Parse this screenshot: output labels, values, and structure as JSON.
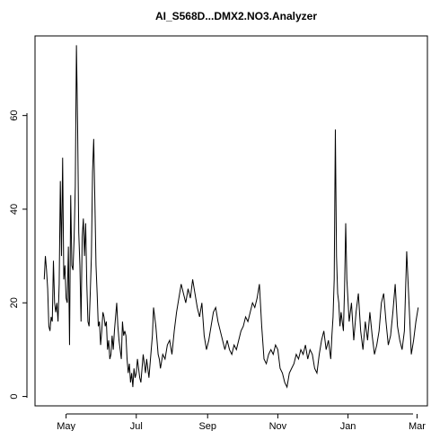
{
  "chart_data": {
    "type": "line",
    "title": "AI_S568D...DMX2.NO3.Analyzer",
    "xlabel": "",
    "ylabel": "",
    "xlim": [
      "2023-04-04",
      "2024-03-10"
    ],
    "ylim": [
      -2,
      77
    ],
    "grid": false,
    "x_ticks": [
      {
        "date": "2023-05-01",
        "label": "May"
      },
      {
        "date": "2023-07-01",
        "label": "Jul"
      },
      {
        "date": "2023-09-01",
        "label": "Sep"
      },
      {
        "date": "2023-11-01",
        "label": "Nov"
      },
      {
        "date": "2024-01-01",
        "label": "Jan"
      },
      {
        "date": "2024-03-01",
        "label": "Mar"
      }
    ],
    "y_ticks": [
      0,
      20,
      40,
      60
    ],
    "series": [
      {
        "x": [
          "2023-04-12",
          "2023-04-13",
          "2023-04-14",
          "2023-04-15",
          "2023-04-16",
          "2023-04-17",
          "2023-04-18",
          "2023-04-19",
          "2023-04-20",
          "2023-04-21",
          "2023-04-22",
          "2023-04-23",
          "2023-04-24",
          "2023-04-25",
          "2023-04-26",
          "2023-04-27",
          "2023-04-28",
          "2023-04-29",
          "2023-04-30",
          "2023-05-01",
          "2023-05-02",
          "2023-05-03",
          "2023-05-04",
          "2023-05-05",
          "2023-05-06",
          "2023-05-07",
          "2023-05-08",
          "2023-05-09",
          "2023-05-10",
          "2023-05-11",
          "2023-05-12",
          "2023-05-13",
          "2023-05-14",
          "2023-05-15",
          "2023-05-16",
          "2023-05-17",
          "2023-05-18",
          "2023-05-19",
          "2023-05-20",
          "2023-05-21",
          "2023-05-22",
          "2023-05-23",
          "2023-05-24",
          "2023-05-25",
          "2023-05-26",
          "2023-05-27",
          "2023-05-28",
          "2023-05-29",
          "2023-05-30",
          "2023-05-31",
          "2023-06-01",
          "2023-06-02",
          "2023-06-03",
          "2023-06-04",
          "2023-06-05",
          "2023-06-06",
          "2023-06-07",
          "2023-06-08",
          "2023-06-09",
          "2023-06-10",
          "2023-06-11",
          "2023-06-12",
          "2023-06-13",
          "2023-06-14",
          "2023-06-15",
          "2023-06-16",
          "2023-06-17",
          "2023-06-18",
          "2023-06-19",
          "2023-06-20",
          "2023-06-21",
          "2023-06-22",
          "2023-06-23",
          "2023-06-24",
          "2023-06-25",
          "2023-06-26",
          "2023-06-27",
          "2023-06-28",
          "2023-06-29",
          "2023-06-30",
          "2023-07-01",
          "2023-07-02",
          "2023-07-03",
          "2023-07-04",
          "2023-07-05",
          "2023-07-06",
          "2023-07-07",
          "2023-07-08",
          "2023-07-09",
          "2023-07-10",
          "2023-07-11",
          "2023-07-12",
          "2023-07-13",
          "2023-07-14",
          "2023-07-15",
          "2023-07-16",
          "2023-07-17",
          "2023-07-18",
          "2023-07-19",
          "2023-07-20",
          "2023-07-21",
          "2023-07-22",
          "2023-07-24",
          "2023-07-26",
          "2023-07-28",
          "2023-07-30",
          "2023-08-01",
          "2023-08-03",
          "2023-08-05",
          "2023-08-07",
          "2023-08-09",
          "2023-08-11",
          "2023-08-13",
          "2023-08-15",
          "2023-08-17",
          "2023-08-19",
          "2023-08-21",
          "2023-08-23",
          "2023-08-25",
          "2023-08-27",
          "2023-08-29",
          "2023-08-31",
          "2023-09-02",
          "2023-09-04",
          "2023-09-06",
          "2023-09-08",
          "2023-09-10",
          "2023-09-12",
          "2023-09-14",
          "2023-09-16",
          "2023-09-18",
          "2023-09-20",
          "2023-09-22",
          "2023-09-24",
          "2023-09-26",
          "2023-09-28",
          "2023-09-30",
          "2023-10-02",
          "2023-10-04",
          "2023-10-06",
          "2023-10-08",
          "2023-10-10",
          "2023-10-12",
          "2023-10-14",
          "2023-10-16",
          "2023-10-18",
          "2023-10-20",
          "2023-10-22",
          "2023-10-24",
          "2023-10-26",
          "2023-10-28",
          "2023-10-30",
          "2023-11-01",
          "2023-11-03",
          "2023-11-05",
          "2023-11-07",
          "2023-11-09",
          "2023-11-11",
          "2023-11-13",
          "2023-11-15",
          "2023-11-17",
          "2023-11-19",
          "2023-11-21",
          "2023-11-23",
          "2023-11-25",
          "2023-11-27",
          "2023-11-29",
          "2023-12-01",
          "2023-12-03",
          "2023-12-05",
          "2023-12-07",
          "2023-12-09",
          "2023-12-11",
          "2023-12-13",
          "2023-12-15",
          "2023-12-17",
          "2023-12-18",
          "2023-12-19",
          "2023-12-20",
          "2023-12-21",
          "2023-12-22",
          "2023-12-23",
          "2023-12-24",
          "2023-12-25",
          "2023-12-26",
          "2023-12-27",
          "2023-12-28",
          "2023-12-29",
          "2023-12-30",
          "2023-12-31",
          "2024-01-02",
          "2024-01-04",
          "2024-01-06",
          "2024-01-08",
          "2024-01-10",
          "2024-01-12",
          "2024-01-14",
          "2024-01-16",
          "2024-01-18",
          "2024-01-20",
          "2024-01-22",
          "2024-01-24",
          "2024-01-26",
          "2024-01-28",
          "2024-01-30",
          "2024-02-01",
          "2024-02-03",
          "2024-02-05",
          "2024-02-07",
          "2024-02-09",
          "2024-02-11",
          "2024-02-13",
          "2024-02-15",
          "2024-02-17",
          "2024-02-19",
          "2024-02-21",
          "2024-02-23",
          "2024-02-25",
          "2024-02-27",
          "2024-02-29",
          "2024-03-02"
        ],
        "values": [
          25,
          30,
          27,
          23,
          15,
          14,
          17,
          16,
          29,
          20,
          18,
          20,
          16,
          24,
          46,
          30,
          51,
          25,
          28,
          21,
          20,
          32,
          11,
          43,
          28,
          27,
          34,
          45,
          75,
          58,
          35,
          28,
          16,
          34,
          38,
          30,
          37,
          24,
          16,
          15,
          22,
          30,
          48,
          55,
          42,
          28,
          22,
          15,
          16,
          11,
          14,
          18,
          17,
          15,
          16,
          10,
          12,
          8,
          9,
          13,
          10,
          14,
          17,
          20,
          15,
          12,
          10,
          8,
          16,
          13,
          14,
          13,
          8,
          5,
          7,
          3,
          5,
          2,
          6,
          4,
          5,
          8,
          6,
          4,
          3,
          6,
          9,
          7,
          5,
          8,
          6,
          4,
          7,
          10,
          13,
          19,
          17,
          15,
          12,
          9,
          8,
          6,
          9,
          8,
          11,
          12,
          9,
          14,
          18,
          21,
          24,
          22,
          20,
          23,
          21,
          25,
          22,
          19,
          17,
          20,
          13,
          10,
          12,
          15,
          18,
          19,
          16,
          14,
          12,
          10,
          12,
          10,
          9,
          11,
          10,
          12,
          14,
          15,
          17,
          16,
          18,
          20,
          19,
          21,
          24,
          15,
          8,
          7,
          9,
          10,
          9,
          11,
          10,
          6,
          5,
          3,
          2,
          5,
          6,
          7,
          9,
          8,
          10,
          9,
          11,
          8,
          10,
          9,
          6,
          5,
          9,
          12,
          14,
          10,
          12,
          8,
          13,
          17,
          25,
          57,
          30,
          22,
          20,
          15,
          18,
          16,
          14,
          23,
          37,
          25,
          16,
          20,
          12,
          18,
          22,
          14,
          10,
          16,
          12,
          18,
          13,
          9,
          11,
          14,
          20,
          22,
          16,
          11,
          13,
          18,
          24,
          15,
          12,
          10,
          14,
          31,
          20,
          9,
          12,
          16,
          19
        ]
      }
    ]
  }
}
